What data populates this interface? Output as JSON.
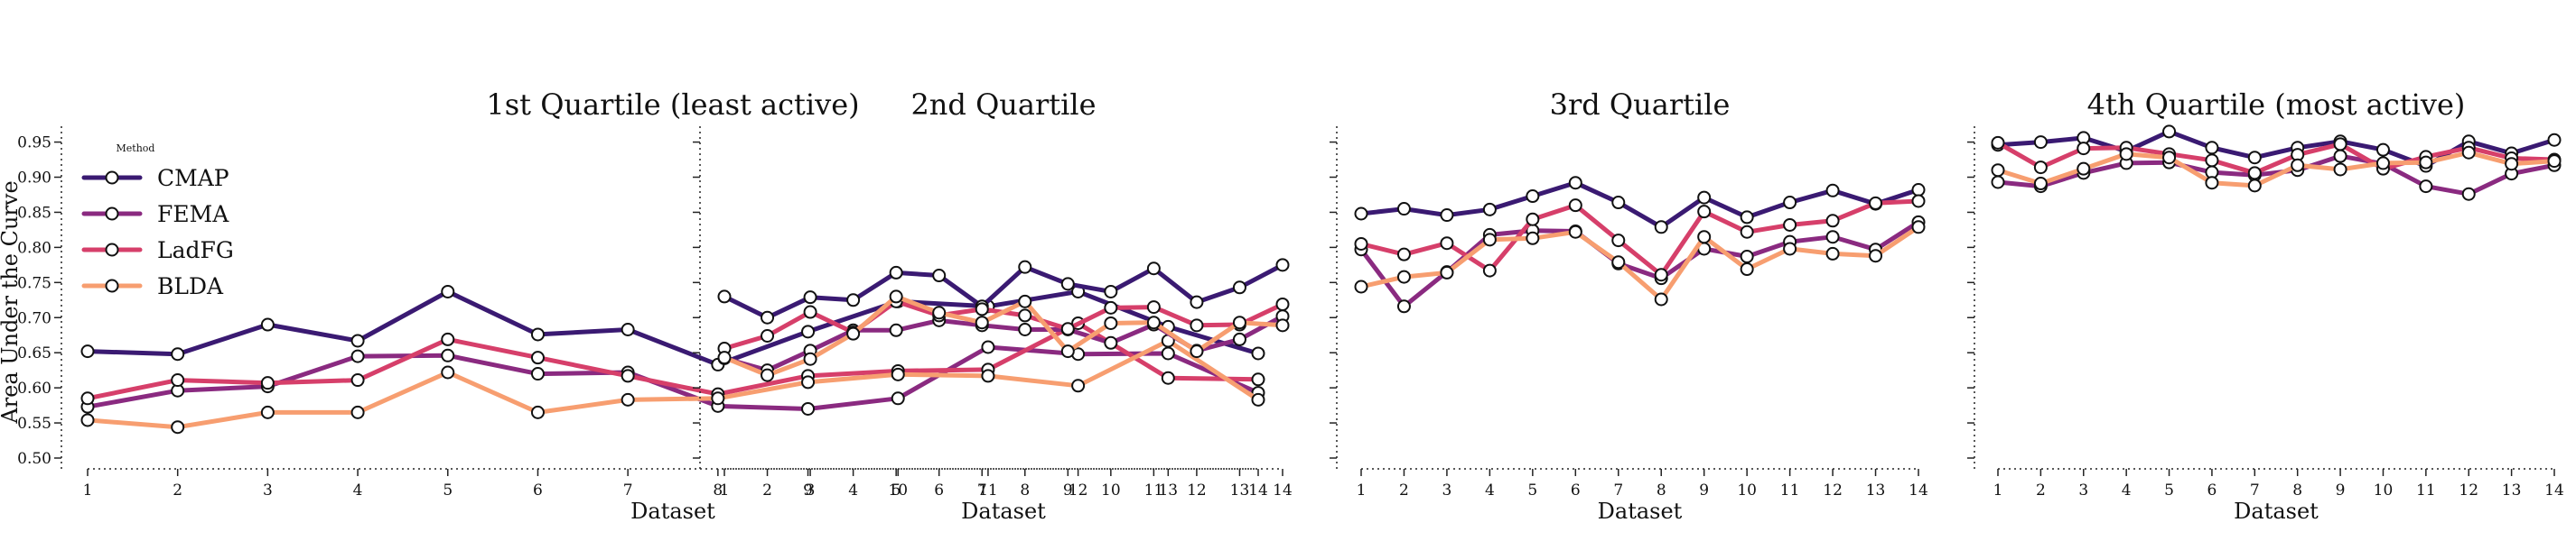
{
  "chart_data": [
    {
      "type": "line",
      "title": "1st Quartile (least active)",
      "xlabel": "Dataset",
      "ylabel": "Area Under the Curve",
      "x": [
        1,
        2,
        3,
        4,
        5,
        6,
        7,
        8,
        9,
        10,
        11,
        12,
        13,
        14
      ],
      "xticks": [
        "1",
        "2",
        "3",
        "4",
        "5",
        "6",
        "7",
        "8",
        "9",
        "10",
        "11",
        "12",
        "13",
        "14"
      ],
      "ylim": [
        0.5,
        0.97
      ],
      "yticks": [
        "0.50",
        "0.55",
        "0.60",
        "0.65",
        "0.70",
        "0.75",
        "0.80",
        "0.85",
        "0.90",
        "0.95"
      ],
      "grid": false,
      "legend": {
        "title": "Method",
        "placement": "top-left"
      },
      "series": [
        {
          "name": "CMAP",
          "values": [
            0.652,
            0.648,
            0.69,
            0.667,
            0.737,
            0.676,
            0.683,
            0.633,
            0.68,
            0.723,
            0.716,
            0.737,
            0.687,
            0.649
          ]
        },
        {
          "name": "FEMA",
          "values": [
            0.573,
            0.596,
            0.602,
            0.645,
            0.646,
            0.62,
            0.622,
            0.574,
            0.57,
            0.585,
            0.658,
            0.648,
            0.649,
            0.593
          ]
        },
        {
          "name": "LadFG",
          "values": [
            0.585,
            0.611,
            0.607,
            0.611,
            0.669,
            0.643,
            0.617,
            0.591,
            0.617,
            0.624,
            0.626,
            0.692,
            0.614,
            0.612
          ]
        },
        {
          "name": "BLDA",
          "values": [
            0.554,
            0.544,
            0.565,
            0.565,
            0.622,
            0.565,
            0.583,
            0.585,
            0.608,
            0.619,
            0.617,
            0.603,
            0.667,
            0.583
          ]
        }
      ]
    },
    {
      "type": "line",
      "title": "2nd Quartile",
      "xlabel": "Dataset",
      "ylabel": "",
      "x": [
        1,
        2,
        3,
        4,
        5,
        6,
        7,
        8,
        9,
        10,
        11,
        12,
        13,
        14
      ],
      "xticks": [
        "1",
        "2",
        "3",
        "4",
        "5",
        "6",
        "7",
        "8",
        "9",
        "10",
        "11",
        "12",
        "13",
        "14"
      ],
      "ylim": [
        0.5,
        0.97
      ],
      "grid": false,
      "series": [
        {
          "name": "CMAP",
          "values": [
            0.73,
            0.7,
            0.729,
            0.725,
            0.764,
            0.76,
            0.716,
            0.772,
            0.748,
            0.737,
            0.77,
            0.722,
            0.743,
            0.775
          ]
        },
        {
          "name": "FEMA",
          "values": [
            0.642,
            0.625,
            0.653,
            0.682,
            0.682,
            0.696,
            0.689,
            0.683,
            0.683,
            0.664,
            0.69,
            0.653,
            0.669,
            0.702
          ]
        },
        {
          "name": "LadFG",
          "values": [
            0.656,
            0.674,
            0.708,
            0.679,
            0.723,
            0.703,
            0.712,
            0.703,
            0.684,
            0.714,
            0.715,
            0.689,
            0.69,
            0.719
          ]
        },
        {
          "name": "BLDA",
          "values": [
            0.643,
            0.618,
            0.641,
            0.677,
            0.73,
            0.707,
            0.693,
            0.723,
            0.652,
            0.692,
            0.693,
            0.652,
            0.693,
            0.689
          ]
        }
      ]
    },
    {
      "type": "line",
      "title": "3rd Quartile",
      "xlabel": "Dataset",
      "ylabel": "",
      "x": [
        1,
        2,
        3,
        4,
        5,
        6,
        7,
        8,
        9,
        10,
        11,
        12,
        13,
        14
      ],
      "xticks": [
        "1",
        "2",
        "3",
        "4",
        "5",
        "6",
        "7",
        "8",
        "9",
        "10",
        "11",
        "12",
        "13",
        "14"
      ],
      "ylim": [
        0.5,
        0.97
      ],
      "grid": false,
      "series": [
        {
          "name": "CMAP",
          "values": [
            0.848,
            0.855,
            0.846,
            0.854,
            0.873,
            0.892,
            0.864,
            0.829,
            0.871,
            0.843,
            0.864,
            0.881,
            0.862,
            0.882
          ]
        },
        {
          "name": "FEMA",
          "values": [
            0.797,
            0.716,
            0.765,
            0.818,
            0.824,
            0.823,
            0.777,
            0.756,
            0.798,
            0.787,
            0.808,
            0.815,
            0.797,
            0.836
          ]
        },
        {
          "name": "LadFG",
          "values": [
            0.805,
            0.79,
            0.806,
            0.767,
            0.84,
            0.86,
            0.81,
            0.761,
            0.851,
            0.822,
            0.832,
            0.838,
            0.863,
            0.866
          ]
        },
        {
          "name": "BLDA",
          "values": [
            0.744,
            0.758,
            0.764,
            0.811,
            0.813,
            0.822,
            0.779,
            0.726,
            0.815,
            0.769,
            0.798,
            0.791,
            0.788,
            0.829
          ]
        }
      ]
    },
    {
      "type": "line",
      "title": "4th Quartile (most active)",
      "xlabel": "Dataset",
      "ylabel": "",
      "x": [
        1,
        2,
        3,
        4,
        5,
        6,
        7,
        8,
        9,
        10,
        11,
        12,
        13,
        14
      ],
      "xticks": [
        "1",
        "2",
        "3",
        "4",
        "5",
        "6",
        "7",
        "8",
        "9",
        "10",
        "11",
        "12",
        "13",
        "14"
      ],
      "ylim": [
        0.5,
        0.97
      ],
      "grid": false,
      "series": [
        {
          "name": "CMAP",
          "values": [
            0.946,
            0.95,
            0.956,
            0.937,
            0.965,
            0.942,
            0.928,
            0.942,
            0.951,
            0.939,
            0.916,
            0.951,
            0.934,
            0.953
          ]
        },
        {
          "name": "FEMA",
          "values": [
            0.893,
            0.887,
            0.906,
            0.92,
            0.921,
            0.907,
            0.903,
            0.91,
            0.93,
            0.919,
            0.887,
            0.876,
            0.905,
            0.917
          ]
        },
        {
          "name": "LadFG",
          "values": [
            0.949,
            0.914,
            0.941,
            0.942,
            0.933,
            0.924,
            0.906,
            0.932,
            0.947,
            0.912,
            0.929,
            0.942,
            0.927,
            0.925
          ]
        },
        {
          "name": "BLDA",
          "values": [
            0.91,
            0.891,
            0.912,
            0.933,
            0.928,
            0.892,
            0.888,
            0.917,
            0.911,
            0.92,
            0.921,
            0.935,
            0.919,
            0.923
          ]
        }
      ]
    }
  ],
  "colors": {
    "CMAP": "#3a1a72",
    "FEMA": "#8a2a80",
    "LadFG": "#d63f6a",
    "BLDA": "#f79e70"
  }
}
